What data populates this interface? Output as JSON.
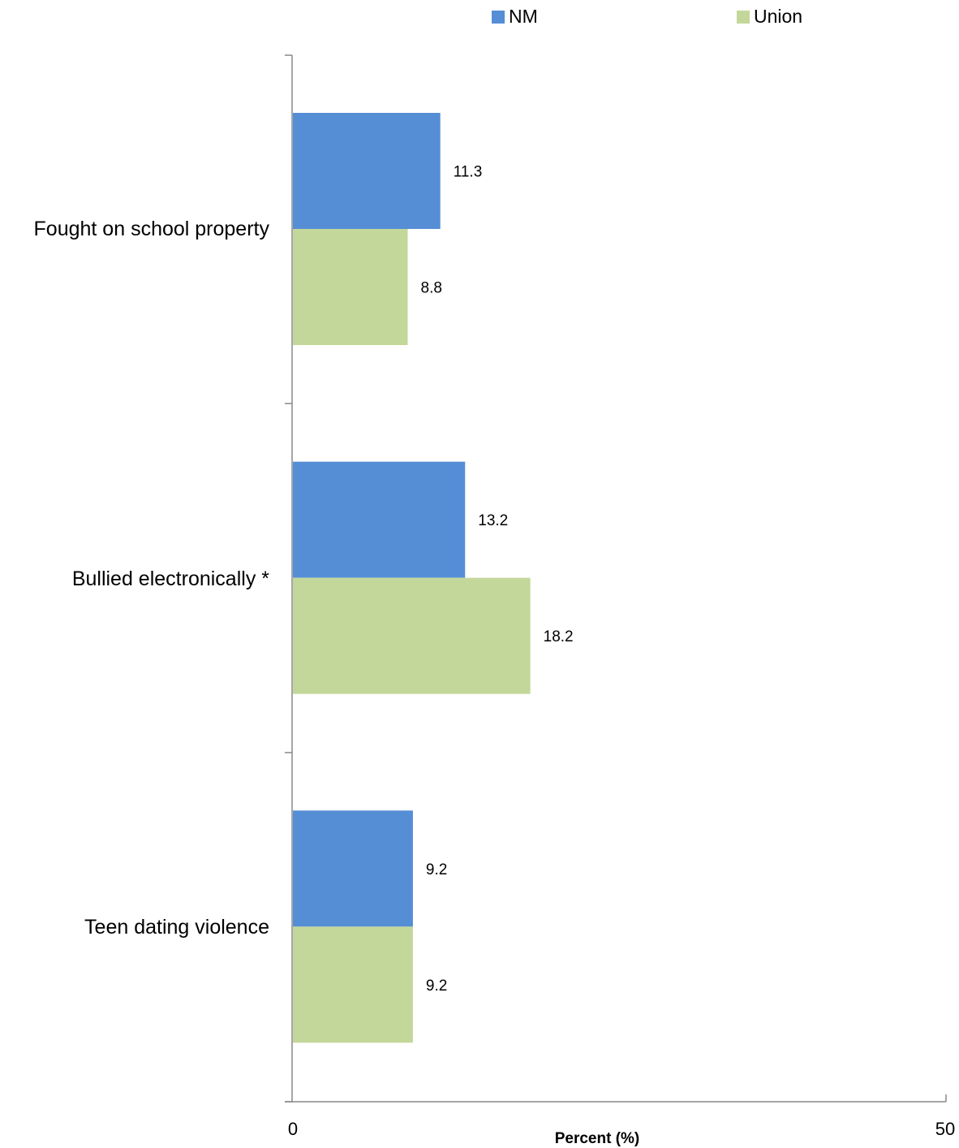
{
  "chart_data": {
    "type": "bar",
    "orientation": "horizontal",
    "categories": [
      "Fought on school property",
      "Bullied electronically *",
      "Teen dating violence"
    ],
    "series": [
      {
        "name": "NM",
        "color": "#558ed5",
        "values": [
          11.3,
          13.2,
          9.2
        ]
      },
      {
        "name": "Union",
        "color": "#c4d79b",
        "values": [
          8.8,
          18.2,
          9.2
        ]
      }
    ],
    "xlabel": "Percent (%)",
    "xlim": [
      0,
      50
    ],
    "x_ticks": [
      "0",
      "50"
    ],
    "grid": false,
    "legend_position": "top"
  }
}
